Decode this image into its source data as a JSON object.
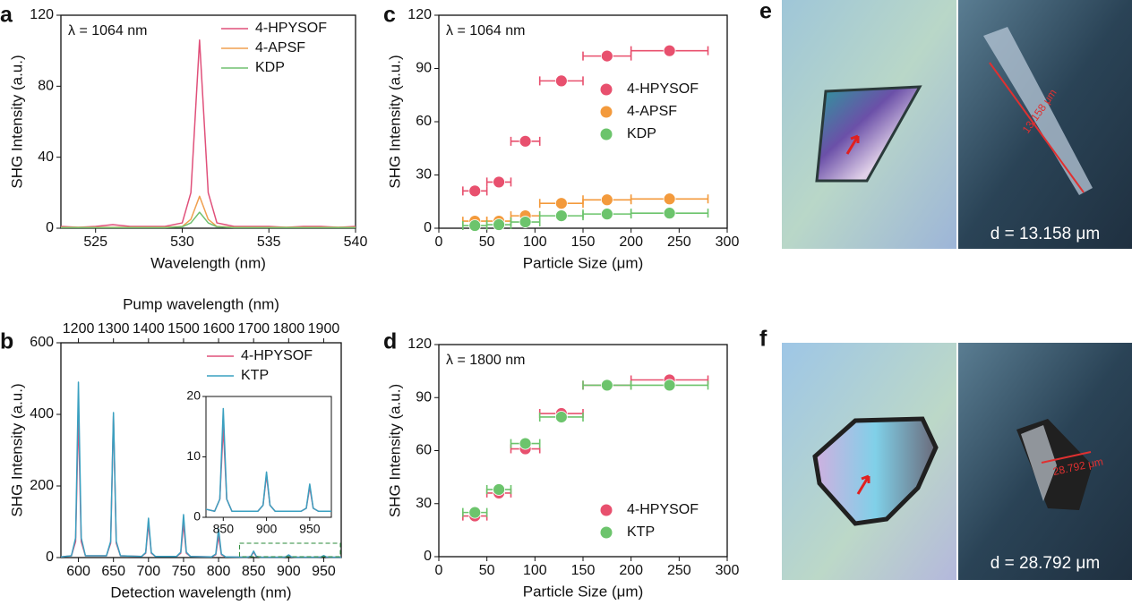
{
  "chart_data": [
    {
      "type": "line",
      "panel": "a",
      "annotation": "λ = 1064 nm",
      "xlabel": "Wavelength (nm)",
      "ylabel": "SHG Intensity (a.u.)",
      "x": [
        523,
        524,
        525,
        526,
        527,
        528,
        529,
        530,
        530.5,
        531,
        531.5,
        532,
        533,
        534,
        535,
        536,
        537,
        538,
        539,
        540
      ],
      "series": [
        {
          "name": "4-HPYSOF",
          "color": "#e0507a",
          "values": [
            1,
            0.5,
            1,
            2,
            1,
            1,
            1,
            3,
            20,
            106,
            20,
            3,
            1,
            1,
            1,
            0.5,
            1,
            1,
            0.5,
            1
          ]
        },
        {
          "name": "4-APSF",
          "color": "#f0a050",
          "values": [
            0.5,
            0.5,
            0.5,
            0.5,
            0.5,
            0.5,
            0.5,
            1,
            5,
            18,
            5,
            1,
            0.5,
            0.5,
            0.5,
            0.5,
            0.5,
            0.5,
            0.5,
            0.5
          ]
        },
        {
          "name": "KDP",
          "color": "#70c070",
          "values": [
            0.3,
            0.3,
            0.3,
            0.3,
            0.3,
            0.3,
            0.3,
            0.8,
            3,
            9,
            3,
            0.8,
            0.3,
            0.3,
            0.3,
            0.3,
            0.3,
            0.3,
            0.3,
            0.3
          ]
        }
      ],
      "xlim": [
        523,
        540
      ],
      "xticks": [
        525,
        530,
        535,
        540
      ],
      "ylim": [
        0,
        120
      ],
      "yticks": [
        0,
        40,
        80,
        120
      ],
      "legend": "upper right"
    },
    {
      "type": "line",
      "panel": "b",
      "xlabel": "Detection wavelength (nm)",
      "ylabel": "SHG Intensity (a.u.)",
      "x2label": "Pump wavelength (nm)",
      "x": [
        575,
        590,
        596,
        600,
        604,
        610,
        640,
        646,
        650,
        654,
        660,
        690,
        696,
        700,
        704,
        710,
        740,
        746,
        750,
        754,
        760,
        790,
        796,
        800,
        804,
        810,
        840,
        846,
        850,
        854,
        860,
        890,
        896,
        900,
        904,
        910,
        940,
        946,
        950,
        954,
        960,
        975
      ],
      "series": [
        {
          "name": "4-HPYSOF",
          "color": "#e0507a",
          "values": [
            2,
            5,
            45,
            400,
            45,
            5,
            5,
            40,
            395,
            40,
            5,
            3,
            12,
            95,
            12,
            3,
            3,
            12,
            95,
            12,
            3,
            2,
            8,
            60,
            8,
            2,
            1,
            3,
            15,
            3,
            1,
            1,
            2,
            7,
            2,
            1,
            1,
            1.5,
            5,
            1.5,
            1,
            1
          ]
        },
        {
          "name": "KTP",
          "color": "#3aa0c0",
          "values": [
            2,
            5,
            55,
            490,
            55,
            5,
            5,
            45,
            405,
            45,
            5,
            3,
            14,
            110,
            14,
            3,
            3,
            15,
            120,
            15,
            3,
            2,
            10,
            80,
            10,
            2,
            1,
            3,
            18,
            3,
            1,
            1,
            2,
            7.5,
            2,
            1,
            1,
            1.5,
            5.5,
            1.5,
            1,
            1
          ]
        }
      ],
      "xlim": [
        575,
        975
      ],
      "xticks": [
        600,
        650,
        700,
        750,
        800,
        850,
        900,
        950
      ],
      "ylim": [
        0,
        600
      ],
      "yticks": [
        0,
        200,
        400,
        600
      ],
      "x2lim": [
        1150,
        1950
      ],
      "x2ticks": [
        1200,
        1300,
        1400,
        1500,
        1600,
        1700,
        1800,
        1900
      ],
      "inset": {
        "xlim": [
          830,
          975
        ],
        "xticks": [
          850,
          900,
          950
        ],
        "ylim": [
          0,
          20
        ],
        "yticks": [
          0,
          10,
          20
        ]
      },
      "legend": "upper right"
    },
    {
      "type": "scatter",
      "panel": "c",
      "annotation": "λ = 1064 nm",
      "xlabel": "Particle Size (μm)",
      "ylabel": "SHG Intensity (a.u.)",
      "x": [
        37.5,
        62.5,
        90,
        127.5,
        175,
        240
      ],
      "xerr": [
        12.5,
        12.5,
        15,
        22.5,
        25,
        40
      ],
      "series": [
        {
          "name": "4-HPYSOF",
          "color": "#e8506e",
          "values": [
            21,
            26,
            49,
            83,
            97,
            100
          ]
        },
        {
          "name": "4-APSF",
          "color": "#f39a3c",
          "values": [
            4,
            4,
            7,
            14,
            16,
            16.5
          ]
        },
        {
          "name": "KDP",
          "color": "#6cc46c",
          "values": [
            1.5,
            2,
            3.5,
            7,
            8,
            8.5
          ]
        }
      ],
      "xlim": [
        0,
        300
      ],
      "xticks": [
        0,
        50,
        100,
        150,
        200,
        250,
        300
      ],
      "ylim": [
        0,
        120
      ],
      "yticks": [
        0,
        30,
        60,
        90,
        120
      ],
      "legend": "center right"
    },
    {
      "type": "scatter",
      "panel": "d",
      "annotation": "λ = 1800 nm",
      "xlabel": "Particle Size (μm)",
      "ylabel": "SHG Intensity (a.u.)",
      "x": [
        37.5,
        62.5,
        90,
        127.5,
        175,
        240
      ],
      "xerr": [
        12.5,
        12.5,
        15,
        22.5,
        25,
        40
      ],
      "series": [
        {
          "name": "4-HPYSOF",
          "color": "#e8506e",
          "values": [
            23,
            36,
            61,
            81,
            97,
            100
          ]
        },
        {
          "name": "KTP",
          "color": "#6cc46c",
          "values": [
            25,
            38,
            64,
            79,
            97,
            97
          ]
        }
      ],
      "xlim": [
        0,
        300
      ],
      "xticks": [
        0,
        50,
        100,
        150,
        200,
        250,
        300
      ],
      "ylim": [
        0,
        120
      ],
      "yticks": [
        0,
        30,
        60,
        90,
        120
      ],
      "legend": "lower right"
    }
  ],
  "images": [
    {
      "panel": "e",
      "scale": "13.158 μm",
      "caption": "d = 13.158 μm"
    },
    {
      "panel": "f",
      "scale": "28.792 μm",
      "caption": "d = 28.792 μm"
    }
  ]
}
